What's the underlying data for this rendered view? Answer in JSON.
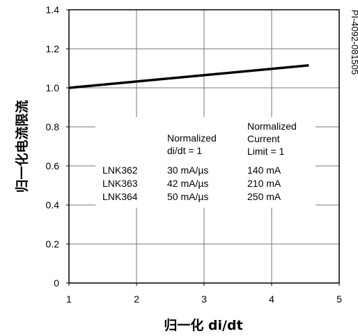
{
  "chart_data": {
    "type": "line",
    "xlabel": "归一化 di/dt",
    "ylabel": "归一化电流限流",
    "xlim": [
      1,
      5
    ],
    "ylim": [
      0,
      1.4
    ],
    "x_ticks": [
      "1",
      "2",
      "3",
      "4",
      "5"
    ],
    "y_ticks": [
      "0",
      "0.2",
      "0.4",
      "0.6",
      "0.8",
      "1.0",
      "1.2",
      "1.4"
    ],
    "grid": true,
    "series": [
      {
        "x": [
          1,
          4.55
        ],
        "y": [
          1.0,
          1.115
        ]
      }
    ],
    "annotations": {
      "didt_header": [
        "Normalized",
        "di/dt = 1"
      ],
      "current_header": [
        "Normalized",
        "Current",
        "Limit = 1"
      ],
      "rows": [
        {
          "part": "LNK362",
          "didt": "30 mA/µs",
          "current": "140 mA"
        },
        {
          "part": "LNK363",
          "didt": "42 mA/µs",
          "current": "210 mA"
        },
        {
          "part": "LNK364",
          "didt": "50 mA/µs",
          "current": "250 mA"
        }
      ]
    },
    "code_label": "PI-4092-081505"
  }
}
